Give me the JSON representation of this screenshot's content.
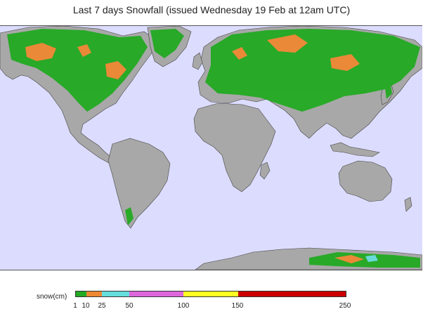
{
  "title": "Last 7 days Snowfall (issued Wednesday 19 Feb at 12am UTC)",
  "map": {
    "ocean_color": "#dcdcff",
    "land_color": "#a8a8a8",
    "regions_with_snow": [
      "North America",
      "Greenland",
      "Europe",
      "Russia",
      "Central Asia",
      "Himalaya",
      "Japan",
      "Antarctica",
      "Andes"
    ]
  },
  "legend": {
    "label": "snow(cm)",
    "ticks": [
      "1",
      "10",
      "25",
      "50",
      "100",
      "150",
      "250"
    ],
    "colors": [
      "#22aa22",
      "#ee8833",
      "#66dddd",
      "#dd66dd",
      "#ffff22",
      "#cc0000"
    ]
  }
}
